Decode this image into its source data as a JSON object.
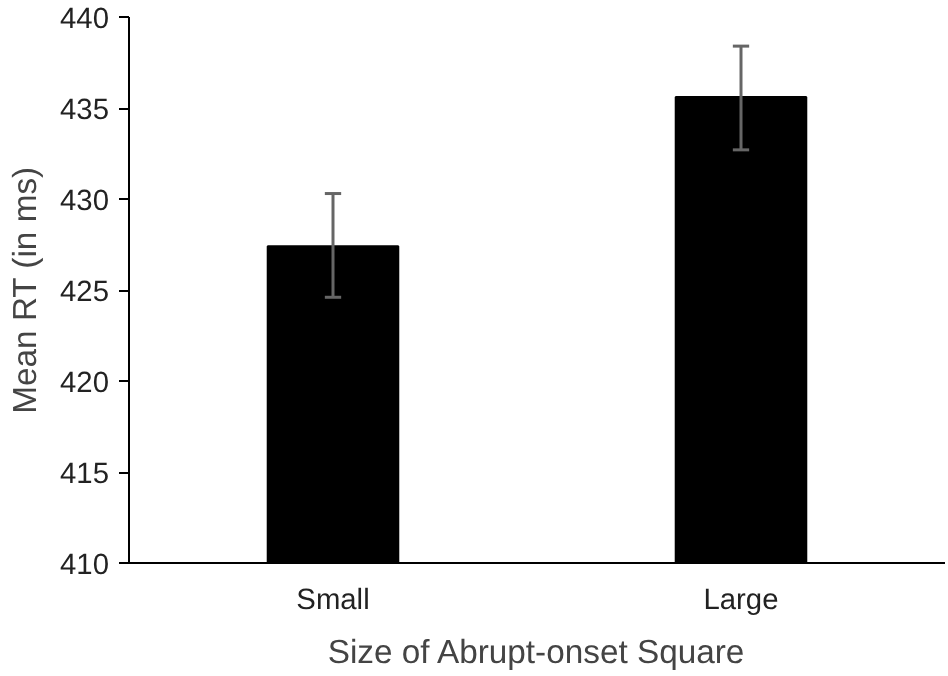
{
  "chart_data": {
    "type": "bar",
    "xlabel": "Size of Abrupt-onset Square",
    "ylabel": "Mean RT (in ms)",
    "categories": [
      "Small",
      "Large"
    ],
    "values": [
      427.4,
      435.6
    ],
    "errors": [
      [
        424.6,
        430.3
      ],
      [
        432.7,
        438.4
      ]
    ],
    "color": "#000000",
    "ylim": [
      410,
      440
    ],
    "yticks": [
      410,
      415,
      420,
      425,
      430,
      435,
      440
    ],
    "grid": false
  }
}
